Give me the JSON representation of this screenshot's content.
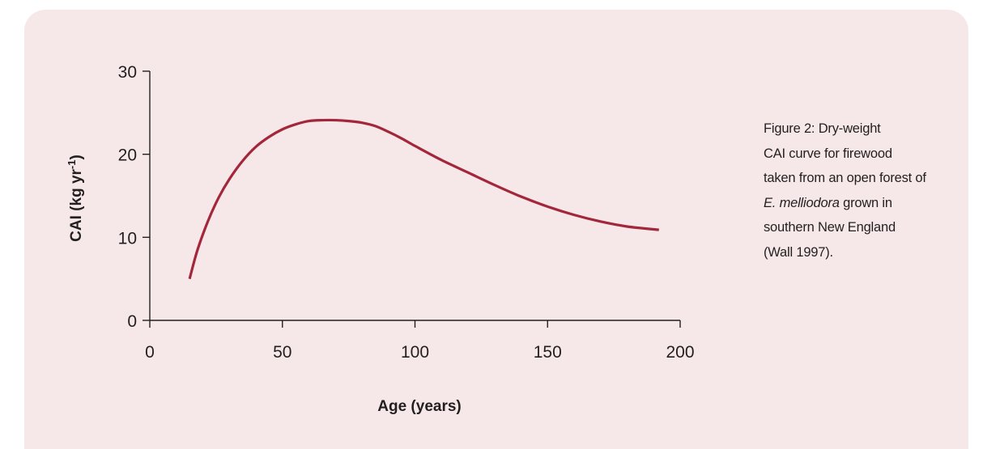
{
  "colors": {
    "panel_background": "#f6e8e9",
    "line": "#a3263a",
    "axis": "#231f20"
  },
  "chart_data": {
    "type": "line",
    "title": "",
    "xlabel": "Age (years)",
    "ylabel_main": "CAI (kg yr",
    "ylabel_superscript": "-1",
    "ylabel_close": ")",
    "xlim": [
      0,
      200
    ],
    "ylim": [
      0,
      30
    ],
    "xticks": [
      "0",
      "50",
      "100",
      "150",
      "200"
    ],
    "yticks": [
      "0",
      "10",
      "20",
      "30"
    ],
    "grid": false,
    "legend": "none",
    "series": [
      {
        "x": [
          15,
          18,
          22,
          26,
          30,
          35,
          40,
          45,
          50,
          55,
          60,
          65,
          70,
          75,
          80,
          85,
          90,
          95,
          100,
          110,
          120,
          130,
          140,
          150,
          160,
          170,
          180,
          192
        ],
        "y": [
          5.0,
          8.5,
          12.0,
          14.8,
          17.0,
          19.2,
          20.9,
          22.1,
          23.0,
          23.6,
          24.0,
          24.1,
          24.1,
          24.0,
          23.8,
          23.4,
          22.7,
          21.9,
          21.0,
          19.3,
          17.8,
          16.3,
          14.9,
          13.7,
          12.7,
          11.9,
          11.3,
          10.9
        ]
      }
    ]
  },
  "caption": {
    "figure_label": "Figure 2:",
    "line1_rest": " Dry-weight",
    "line2": "CAI curve for firewood",
    "line3": "taken from an open forest of",
    "line4_italic": "E. melliodora",
    "line4_rest": " grown in",
    "line5": "southern New England",
    "line6": "(Wall 1997)."
  }
}
